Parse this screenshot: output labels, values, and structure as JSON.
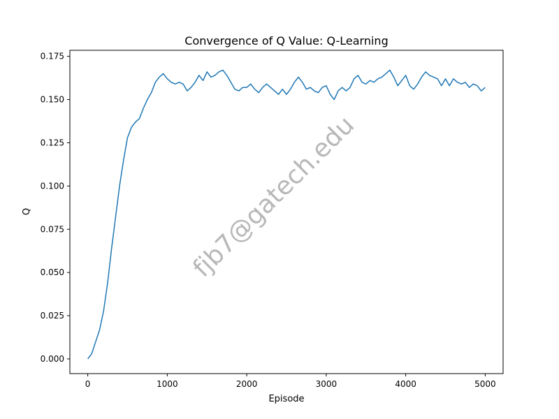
{
  "chart_data": {
    "type": "line",
    "title": "Convergence of Q Value: Q-Learning",
    "xlabel": "Episode",
    "ylabel": "Q",
    "xlim": [
      -225,
      5225
    ],
    "ylim": [
      -0.0085,
      0.1785
    ],
    "xticks": [
      0,
      1000,
      2000,
      3000,
      4000,
      5000
    ],
    "xtick_labels": [
      "0",
      "1000",
      "2000",
      "3000",
      "4000",
      "5000"
    ],
    "yticks": [
      0.0,
      0.025,
      0.05,
      0.075,
      0.1,
      0.125,
      0.15,
      0.175
    ],
    "ytick_labels": [
      "0.000",
      "0.025",
      "0.050",
      "0.075",
      "0.100",
      "0.125",
      "0.150",
      "0.175"
    ],
    "grid": false,
    "series": [
      {
        "color": "#1f77b4",
        "x": [
          0,
          50,
          100,
          150,
          200,
          250,
          300,
          350,
          400,
          450,
          500,
          550,
          600,
          650,
          700,
          750,
          800,
          850,
          900,
          950,
          1000,
          1050,
          1100,
          1150,
          1200,
          1250,
          1300,
          1350,
          1400,
          1450,
          1500,
          1550,
          1600,
          1650,
          1700,
          1750,
          1800,
          1850,
          1900,
          1950,
          2000,
          2050,
          2100,
          2150,
          2200,
          2250,
          2300,
          2350,
          2400,
          2450,
          2500,
          2550,
          2600,
          2650,
          2700,
          2750,
          2800,
          2850,
          2900,
          2950,
          3000,
          3050,
          3100,
          3150,
          3200,
          3250,
          3300,
          3350,
          3400,
          3450,
          3500,
          3550,
          3600,
          3650,
          3700,
          3750,
          3800,
          3850,
          3900,
          3950,
          4000,
          4050,
          4100,
          4150,
          4200,
          4250,
          4300,
          4350,
          4400,
          4450,
          4500,
          4550,
          4600,
          4650,
          4700,
          4750,
          4800,
          4850,
          4900,
          4950,
          5000
        ],
        "y": [
          0.0,
          0.003,
          0.01,
          0.017,
          0.028,
          0.044,
          0.064,
          0.082,
          0.1,
          0.115,
          0.128,
          0.134,
          0.137,
          0.139,
          0.145,
          0.15,
          0.154,
          0.16,
          0.163,
          0.165,
          0.162,
          0.16,
          0.159,
          0.16,
          0.159,
          0.155,
          0.157,
          0.16,
          0.164,
          0.161,
          0.166,
          0.163,
          0.164,
          0.166,
          0.167,
          0.164,
          0.16,
          0.156,
          0.155,
          0.157,
          0.157,
          0.159,
          0.156,
          0.154,
          0.157,
          0.159,
          0.157,
          0.155,
          0.153,
          0.156,
          0.153,
          0.156,
          0.16,
          0.163,
          0.16,
          0.156,
          0.157,
          0.155,
          0.154,
          0.157,
          0.158,
          0.153,
          0.15,
          0.155,
          0.157,
          0.155,
          0.157,
          0.162,
          0.164,
          0.16,
          0.159,
          0.161,
          0.16,
          0.162,
          0.163,
          0.165,
          0.167,
          0.163,
          0.158,
          0.161,
          0.164,
          0.158,
          0.156,
          0.159,
          0.163,
          0.166,
          0.164,
          0.163,
          0.162,
          0.158,
          0.162,
          0.158,
          0.162,
          0.16,
          0.159,
          0.16,
          0.157,
          0.159,
          0.158,
          0.155,
          0.157
        ]
      }
    ],
    "watermark": "fjb7@gatech.edu"
  }
}
